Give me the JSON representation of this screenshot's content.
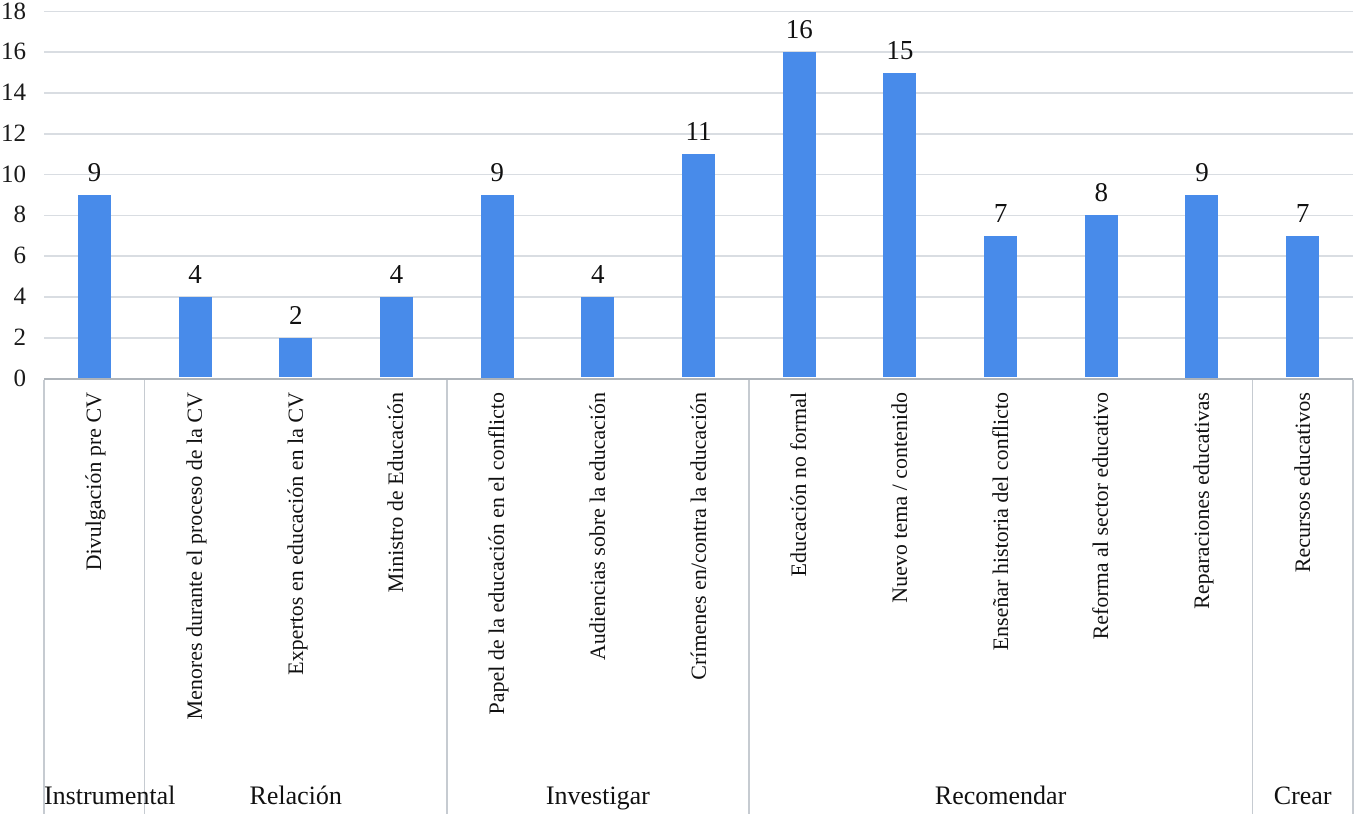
{
  "figure": {
    "background_color": "#FFFFFF",
    "text_color": "#111111"
  },
  "chart_data": {
    "type": "bar",
    "title": "",
    "xlabel": "",
    "ylabel": "",
    "categories": [
      "Divulgación pre CV",
      "Menores durante el proceso de la CV",
      "Expertos en educación en la CV",
      "Ministro de Educación",
      "Papel de la educación en el conflicto",
      "Audiencias sobre la educación",
      "Crímenes en/contra la educación",
      "Educación no formal",
      "Nuevo tema / contenido",
      "Enseñar historia del conflicto",
      "Reforma al sector educativo",
      "Reparaciones educativas",
      "Recursos educativos"
    ],
    "values": [
      9,
      4,
      2,
      4,
      9,
      4,
      11,
      16,
      15,
      7,
      8,
      9,
      7
    ],
    "groups": [
      {
        "label": "Instrumental",
        "categories_count": 1
      },
      {
        "label": "Relación",
        "categories_count": 3
      },
      {
        "label": "Investigar",
        "categories_count": 3
      },
      {
        "label": "Recomendar",
        "categories_count": 5
      },
      {
        "label": "Crear",
        "categories_count": 1
      }
    ],
    "y_ticks": [
      0,
      2,
      4,
      6,
      8,
      10,
      12,
      14,
      16,
      18
    ],
    "ylim": [
      0,
      18
    ],
    "grid": "horizontal-gridlines-on",
    "legend": "none",
    "bar_color": "#488BEA",
    "gridline_color": "#D9DDE2",
    "axis_line_color": "#AEB4BA",
    "divider_color": "#C6CBD1",
    "category_label_rotation_deg": -90
  }
}
